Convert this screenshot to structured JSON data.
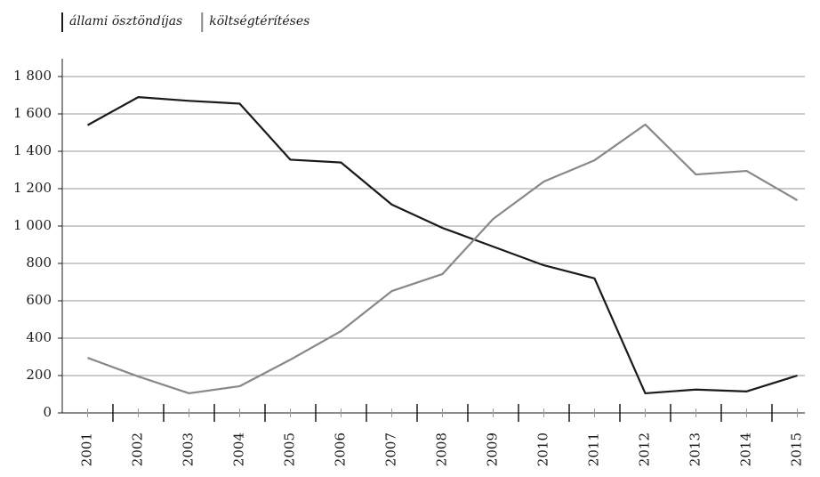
{
  "chart_data": {
    "type": "line",
    "categories": [
      "2001",
      "2002",
      "2003",
      "2004",
      "2005",
      "2006",
      "2007",
      "2008",
      "2009",
      "2010",
      "2011",
      "2012",
      "2013",
      "2014",
      "2015"
    ],
    "series": [
      {
        "name": "állami ösztöndíjas",
        "color": "#1a1a1a",
        "values": [
          1540,
          1690,
          1670,
          1655,
          1355,
          1340,
          1115,
          990,
          890,
          790,
          720,
          105,
          125,
          115,
          200
        ]
      },
      {
        "name": "költségtérítéses",
        "color": "#888888",
        "values": [
          295,
          195,
          105,
          143,
          285,
          438,
          652,
          743,
          1038,
          1238,
          1352,
          1543,
          1276,
          1295,
          1138
        ]
      }
    ],
    "ylim": [
      0,
      1800
    ],
    "yticks": [
      0,
      200,
      400,
      600,
      800,
      {
        "value": 1000,
        "label": "1 000"
      },
      {
        "value": 1200,
        "label": "1 200"
      },
      {
        "value": 1400,
        "label": "1 400"
      },
      {
        "value": 1600,
        "label": "1 600"
      },
      {
        "value": 1800,
        "label": "1 800"
      }
    ],
    "grid": true,
    "legend": "top-left"
  }
}
